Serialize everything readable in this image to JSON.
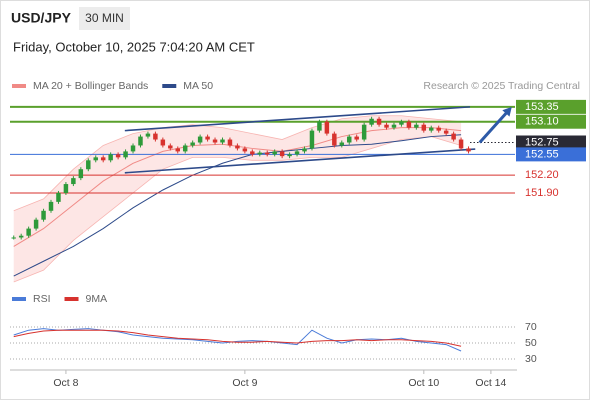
{
  "chart_data": {
    "type": "candlestick",
    "title": "USD/JPY",
    "timeframe": "30 MIN",
    "subtitle": "Friday, October 10, 2025 7:04:20 AM CET",
    "source": "Research © 2025 Trading Central",
    "legend": [
      {
        "name": "MA 20 + Bollinger Bands",
        "color": "#f08a86"
      },
      {
        "name": "MA 50",
        "color": "#2d4a8a"
      }
    ],
    "xlim": [
      0,
      68
    ],
    "xticks": [
      {
        "value": 7.5,
        "label": "Oct 8"
      },
      {
        "value": 31.5,
        "label": "Oct 9"
      },
      {
        "value": 55.5,
        "label": "Oct 10"
      },
      {
        "value": 64.5,
        "label": "Oct 14"
      }
    ],
    "ylim": [
      150.35,
      153.55
    ],
    "close": [
      151.15,
      151.18,
      151.3,
      151.45,
      151.6,
      151.75,
      151.9,
      152.05,
      152.15,
      152.3,
      152.45,
      152.5,
      152.45,
      152.55,
      152.5,
      152.6,
      152.7,
      152.85,
      152.9,
      152.8,
      152.7,
      152.65,
      152.6,
      152.7,
      152.75,
      152.85,
      152.8,
      152.75,
      152.8,
      152.7,
      152.65,
      152.6,
      152.55,
      152.58,
      152.55,
      152.6,
      152.52,
      152.55,
      152.6,
      152.65,
      152.95,
      153.1,
      152.9,
      152.7,
      152.75,
      152.85,
      152.8,
      153.05,
      153.15,
      153.05,
      153.0,
      153.05,
      153.1,
      153.0,
      153.05,
      152.95,
      153.0,
      152.95,
      152.9,
      152.8,
      152.65,
      152.6
    ],
    "up_color": "#2e9a3a",
    "down_color": "#d7322e",
    "ma_x": [
      0.5,
      4.5,
      8.5,
      12.5,
      16.5,
      20.5,
      24.5,
      28.5,
      32.5,
      36.5,
      40.5,
      44.5,
      48.5,
      52.5,
      56.5,
      60.5
    ],
    "ma50": [
      150.5,
      150.75,
      151.0,
      151.3,
      151.65,
      151.95,
      152.2,
      152.4,
      152.55,
      152.6,
      152.65,
      152.7,
      152.72,
      152.78,
      152.85,
      152.88
    ],
    "ma20": [
      151.0,
      151.3,
      151.7,
      152.1,
      152.4,
      152.6,
      152.7,
      152.72,
      152.65,
      152.6,
      152.7,
      152.85,
      152.95,
      153.0,
      153.0,
      152.95
    ],
    "bb_upper": [
      151.6,
      151.8,
      152.3,
      152.7,
      152.9,
      153.0,
      153.05,
      153.0,
      152.9,
      152.8,
      153.0,
      153.15,
      153.2,
      153.2,
      153.15,
      153.1
    ],
    "bb_lower": [
      150.4,
      150.6,
      151.1,
      151.5,
      151.9,
      152.3,
      152.5,
      152.5,
      152.45,
      152.45,
      152.5,
      152.5,
      152.65,
      152.8,
      152.85,
      152.7
    ],
    "channel": [
      {
        "x": [
          15.4,
          61.7
        ],
        "y": [
          152.95,
          153.35
        ]
      },
      {
        "x": [
          15.4,
          62.4
        ],
        "y": [
          152.24,
          152.64
        ]
      }
    ],
    "arrow": {
      "x": [
        63.0,
        67.3
      ],
      "y": [
        152.75,
        153.35
      ]
    },
    "levels": [
      {
        "value": 153.35,
        "label": "153.35",
        "color": "#5aa02c",
        "style": "box"
      },
      {
        "value": 153.1,
        "label": "153.10",
        "color": "#5aa02c",
        "style": "box"
      },
      {
        "value": 152.75,
        "label": "152.75",
        "color": "#2a2a35",
        "style": "dotted"
      },
      {
        "value": 152.55,
        "label": "152.55",
        "color": "#3a6fd8",
        "style": "box"
      },
      {
        "value": 152.2,
        "label": "152.20",
        "color": "#d7322e",
        "style": "text"
      },
      {
        "value": 151.9,
        "label": "151.90",
        "color": "#d7322e",
        "style": "text"
      }
    ],
    "rsi": {
      "legend": [
        {
          "name": "RSI",
          "color": "#4a7bd8"
        },
        {
          "name": "9MA",
          "color": "#d7322e"
        }
      ],
      "ylim": [
        20,
        85
      ],
      "yticks": [
        70,
        50,
        30
      ],
      "x": [
        0.5,
        2.5,
        4.5,
        6.5,
        8.5,
        10.5,
        12.5,
        14.5,
        16.5,
        18.5,
        20.5,
        22.5,
        24.5,
        26.5,
        28.5,
        30.5,
        32.5,
        34.5,
        36.5,
        38.5,
        40.5,
        42.5,
        44.5,
        46.5,
        48.5,
        50.5,
        52.5,
        54.5,
        56.5,
        58.5,
        60.5
      ],
      "values": [
        60,
        66,
        68,
        66,
        67,
        68,
        66,
        64,
        60,
        58,
        56,
        55,
        54,
        52,
        50,
        52,
        53,
        52,
        50,
        48,
        66,
        56,
        50,
        54,
        55,
        54,
        56,
        52,
        50,
        48,
        40
      ],
      "ma9": [
        58,
        62,
        65,
        66,
        66,
        66,
        66,
        65,
        63,
        60,
        58,
        56,
        55,
        54,
        52,
        51,
        51,
        52,
        51,
        50,
        52,
        53,
        53,
        54,
        53,
        54,
        54,
        53,
        52,
        50,
        46
      ]
    }
  }
}
